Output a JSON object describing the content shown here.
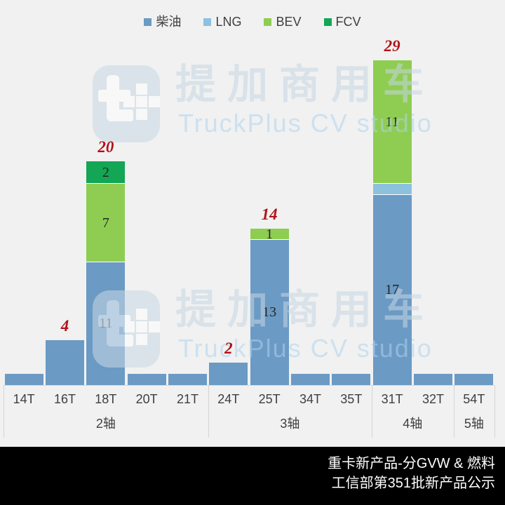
{
  "legend": {
    "items": [
      {
        "label": "柴油",
        "color": "#6b9ac4"
      },
      {
        "label": "LNG",
        "color": "#8cc2de"
      },
      {
        "label": "BEV",
        "color": "#8fcd52"
      },
      {
        "label": "FCV",
        "color": "#12a655"
      }
    ]
  },
  "chart_data": {
    "type": "bar",
    "stacked": true,
    "title": "重卡新产品-分GVW & 燃料",
    "subtitle": "工信部第351批新产品公示",
    "categories": [
      "14T",
      "16T",
      "18T",
      "20T",
      "21T",
      "24T",
      "25T",
      "34T",
      "35T",
      "31T",
      "32T",
      "54T"
    ],
    "series": [
      {
        "name": "柴油",
        "color": "#6b9ac4",
        "values": [
          1,
          4,
          11,
          1,
          1,
          2,
          13,
          1,
          1,
          17,
          1,
          1
        ]
      },
      {
        "name": "LNG",
        "color": "#8cc2de",
        "values": [
          0,
          0,
          0,
          0,
          0,
          0,
          0,
          0,
          0,
          1,
          0,
          0
        ]
      },
      {
        "name": "BEV",
        "color": "#8fcd52",
        "values": [
          0,
          0,
          7,
          0,
          0,
          0,
          1,
          0,
          0,
          11,
          0,
          0
        ]
      },
      {
        "name": "FCV",
        "color": "#12a655",
        "values": [
          0,
          0,
          2,
          0,
          0,
          0,
          0,
          0,
          0,
          0,
          0,
          0
        ]
      }
    ],
    "groups": [
      {
        "label": "2轴",
        "from": 0,
        "to": 4
      },
      {
        "label": "3轴",
        "from": 5,
        "to": 8
      },
      {
        "label": "4轴",
        "from": 9,
        "to": 10
      },
      {
        "label": "5轴",
        "from": 11,
        "to": 11
      }
    ],
    "totals": [
      {
        "category": "16T",
        "value": 4
      },
      {
        "category": "18T",
        "value": 20
      },
      {
        "category": "24T",
        "value": 2
      },
      {
        "category": "25T",
        "value": 14
      },
      {
        "category": "31T",
        "value": 29
      }
    ],
    "visible_segment_labels": [
      [
        "18T",
        "柴油"
      ],
      [
        "18T",
        "BEV"
      ],
      [
        "18T",
        "FCV"
      ],
      [
        "25T",
        "柴油"
      ],
      [
        "25T",
        "BEV"
      ],
      [
        "31T",
        "柴油"
      ],
      [
        "31T",
        "BEV"
      ]
    ],
    "ylim": [
      0,
      29
    ],
    "grid": false,
    "legend_position": "top"
  },
  "watermark": {
    "brand_cn": "提加商用车",
    "brand_en": "TruckPlus CV studio"
  },
  "colors": {
    "background": "#f1f1f1",
    "total_label": "#b01218",
    "bar_label": "#262626",
    "axis_label": "#3f3f3f",
    "axis_line": "#d9d9d9",
    "segment_divider": "#ffffff",
    "footer_bg": "#000000",
    "footer_text": "#ffffff"
  }
}
